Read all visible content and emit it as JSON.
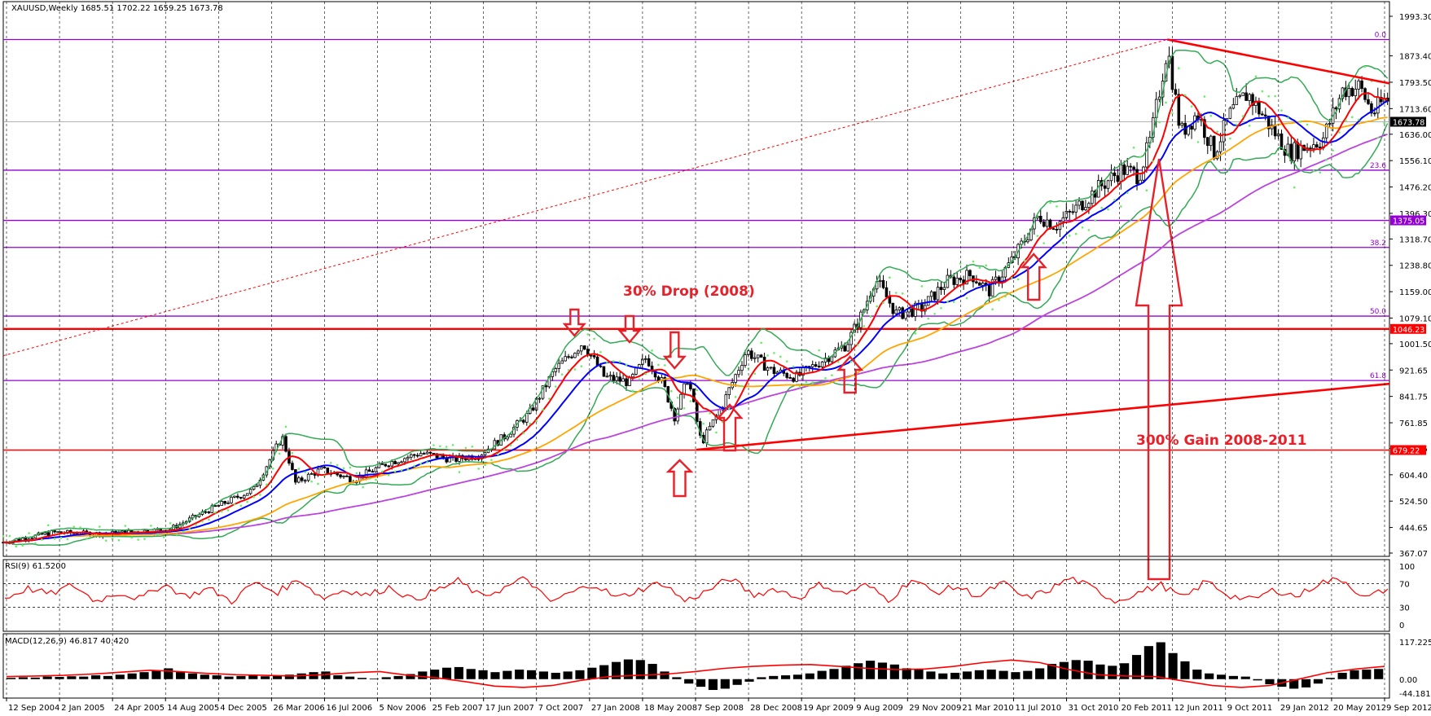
{
  "window": {
    "symbol_line": "XAUUSD,Weekly  1685.51 1702.22 1659.25 1673.78"
  },
  "annotations": {
    "drop_label": "30% Drop (2008)",
    "gain_label": "300% Gain 2008-2011"
  },
  "colors": {
    "bull_candle": "#ffffff",
    "bear_candle": "#000000",
    "fib_lines": "#9400d3",
    "support_resistance": "#ff0000",
    "ma_red": "#ff0000",
    "ma_blue": "#0000ff",
    "ma_orange": "#ffa500",
    "ma_purple": "#bb44dd",
    "bollinger": "#33aa55",
    "parabolic_sar": "#66ee66"
  },
  "chart_data": [
    {
      "type": "candlestick",
      "title": "XAUUSD,Weekly",
      "ohlc_last": {
        "open": 1685.51,
        "high": 1702.22,
        "low": 1659.25,
        "close": 1673.78
      },
      "ylim": [
        367.07,
        1993.3
      ],
      "y_ticks": [
        "1993.30",
        "1873.40",
        "1793.50",
        "1713.60",
        "1636.00",
        "1556.10",
        "1476.20",
        "1396.30",
        "1318.70",
        "1238.80",
        "1159.00",
        "1079.10",
        "1001.50",
        "921.65",
        "841.75",
        "761.85",
        "684.25",
        "604.40",
        "524.50",
        "444.65",
        "367.07"
      ],
      "x_labels": [
        "12 Sep 2004",
        "2 Jan 2005",
        "24 Apr 2005",
        "14 Aug 2005",
        "4 Dec 2005",
        "26 Mar 2006",
        "16 Jul 2006",
        "5 Nov 2006",
        "25 Feb 2007",
        "17 Jun 2007",
        "7 Oct 2007",
        "27 Jan 2008",
        "18 May 2008",
        "7 Sep 2008",
        "28 Dec 2008",
        "19 Apr 2009",
        "9 Aug 2009",
        "29 Nov 2009",
        "21 Mar 2010",
        "11 Jul 2010",
        "31 Oct 2010",
        "20 Feb 2011",
        "12 Jun 2011",
        "9 Oct 2011",
        "29 Jan 2012",
        "20 May 2012",
        "9 Sep 2012"
      ],
      "price_path": [
        [
          2004.7,
          400
        ],
        [
          2005.0,
          430
        ],
        [
          2005.3,
          425
        ],
        [
          2005.7,
          440
        ],
        [
          2005.92,
          495
        ],
        [
          2006.2,
          560
        ],
        [
          2006.37,
          720
        ],
        [
          2006.45,
          580
        ],
        [
          2006.6,
          620
        ],
        [
          2006.8,
          590
        ],
        [
          2007.0,
          640
        ],
        [
          2007.2,
          670
        ],
        [
          2007.4,
          650
        ],
        [
          2007.55,
          665
        ],
        [
          2007.7,
          720
        ],
        [
          2007.85,
          790
        ],
        [
          2008.0,
          920
        ],
        [
          2008.17,
          1005
        ],
        [
          2008.3,
          900
        ],
        [
          2008.45,
          885
        ],
        [
          2008.55,
          960
        ],
        [
          2008.65,
          880
        ],
        [
          2008.72,
          780
        ],
        [
          2008.8,
          900
        ],
        [
          2008.88,
          700
        ],
        [
          2009.0,
          810
        ],
        [
          2009.15,
          980
        ],
        [
          2009.3,
          920
        ],
        [
          2009.45,
          900
        ],
        [
          2009.6,
          950
        ],
        [
          2009.75,
          1000
        ],
        [
          2009.85,
          1100
        ],
        [
          2009.92,
          1200
        ],
        [
          2010.05,
          1090
        ],
        [
          2010.2,
          1110
        ],
        [
          2010.35,
          1190
        ],
        [
          2010.5,
          1210
        ],
        [
          2010.6,
          1160
        ],
        [
          2010.75,
          1260
        ],
        [
          2010.9,
          1390
        ],
        [
          2011.0,
          1360
        ],
        [
          2011.1,
          1400
        ],
        [
          2011.25,
          1470
        ],
        [
          2011.4,
          1530
        ],
        [
          2011.5,
          1510
        ],
        [
          2011.57,
          1620
        ],
        [
          2011.67,
          1900
        ],
        [
          2011.75,
          1640
        ],
        [
          2011.85,
          1700
        ],
        [
          2011.95,
          1580
        ],
        [
          2012.05,
          1700
        ],
        [
          2012.15,
          1760
        ],
        [
          2012.3,
          1650
        ],
        [
          2012.4,
          1580
        ],
        [
          2012.5,
          1600
        ],
        [
          2012.6,
          1620
        ],
        [
          2012.72,
          1770
        ],
        [
          2012.82,
          1780
        ],
        [
          2012.9,
          1700
        ],
        [
          2012.97,
          1740
        ]
      ],
      "horizontal_levels": [
        {
          "value": 1375.05,
          "label": "1375.05",
          "color": "#9400d3"
        },
        {
          "value": 1046.23,
          "label": "1046.23",
          "color": "#ff0000"
        },
        {
          "value": 679.22,
          "label": "679.22",
          "color": "#ff0000"
        },
        {
          "value": 1673.78,
          "label": "1673.78",
          "color": "#000000"
        }
      ],
      "fib_levels": [
        {
          "label": "0.0",
          "value": 1923
        },
        {
          "label": "23.6",
          "value": 1527
        },
        {
          "label": "38.2",
          "value": 1293
        },
        {
          "label": "50.0",
          "value": 1085
        },
        {
          "label": "61.8",
          "value": 890
        }
      ],
      "trendlines": [
        {
          "name": "ascending-support",
          "from": [
            2008.85,
            680
          ],
          "to": [
            2013.0,
            880
          ],
          "color": "#ff0000"
        },
        {
          "name": "descending-resistance",
          "from": [
            2011.67,
            1923
          ],
          "to": [
            2013.0,
            1790
          ],
          "color": "#ff0000"
        },
        {
          "name": "fib-baseline",
          "from": [
            2004.7,
            965
          ],
          "to": [
            2011.67,
            1923
          ],
          "color": "#ff0000",
          "style": "dotted"
        }
      ]
    },
    {
      "type": "line",
      "title": "RSI(9) 61.5200",
      "ylim": [
        0,
        100
      ],
      "y_ticks": [
        "100",
        "70",
        "30",
        "0"
      ],
      "levels": [
        70,
        30
      ],
      "values": [
        45,
        62,
        52,
        68,
        40,
        55,
        44,
        70,
        48,
        62,
        40,
        72,
        55,
        78,
        45,
        60,
        50,
        65,
        42,
        58,
        75,
        48,
        62,
        80,
        38,
        55,
        70,
        45,
        60,
        72,
        40,
        58,
        80,
        50,
        62,
        45,
        70,
        52,
        68,
        42,
        78,
        55,
        65,
        48,
        72,
        45,
        58,
        80,
        62,
        40,
        55,
        68,
        45,
        75,
        50,
        42,
        60,
        48,
        72,
        78,
        45,
        61.52
      ]
    },
    {
      "type": "bar",
      "title": "MACD(12,26,9) 46.817 40.420",
      "ylim": [
        -44.181,
        117.225
      ],
      "y_ticks": [
        "117.225",
        "0.00",
        "-44.181"
      ],
      "values": [
        4,
        6,
        5,
        8,
        7,
        9,
        8,
        12,
        10,
        14,
        18,
        22,
        28,
        34,
        24,
        18,
        14,
        12,
        8,
        10,
        12,
        9,
        10,
        14,
        18,
        22,
        24,
        12,
        8,
        4,
        2,
        6,
        10,
        16,
        24,
        30,
        36,
        38,
        32,
        28,
        22,
        26,
        30,
        28,
        24,
        20,
        24,
        28,
        36,
        44,
        54,
        62,
        60,
        48,
        24,
        6,
        -14,
        -24,
        -34,
        -30,
        -18,
        -8,
        6,
        10,
        12,
        14,
        18,
        26,
        32,
        42,
        50,
        58,
        52,
        46,
        34,
        30,
        24,
        18,
        20,
        24,
        28,
        30,
        26,
        22,
        26,
        34,
        48,
        54,
        60,
        58,
        46,
        42,
        50,
        76,
        104,
        116,
        82,
        56,
        30,
        18,
        14,
        10,
        8,
        -4,
        -16,
        -24,
        -30,
        -26,
        -14,
        4,
        20,
        28,
        30,
        32
      ],
      "signal": [
        8,
        10,
        12,
        16,
        22,
        28,
        24,
        18,
        14,
        12,
        10,
        14,
        20,
        24,
        12,
        4,
        -8,
        -22,
        -26,
        -20,
        -4,
        8,
        12,
        16,
        24,
        34,
        40,
        44,
        46,
        40,
        34,
        30,
        32,
        40,
        52,
        60,
        52,
        30,
        14,
        10,
        8,
        -6,
        -20,
        -26,
        -20,
        0,
        20,
        32,
        40
      ],
      "last_values": {
        "macd": 46.817,
        "signal": 40.42
      }
    }
  ]
}
